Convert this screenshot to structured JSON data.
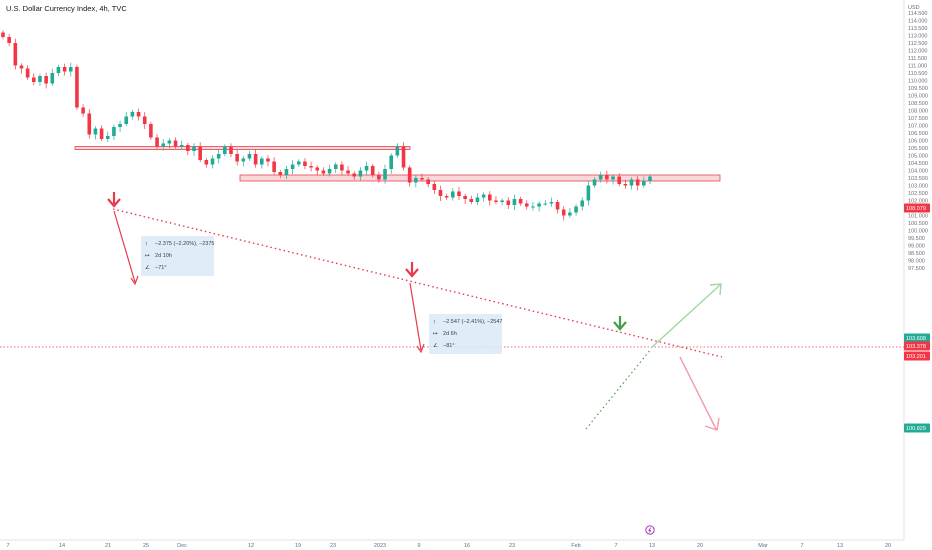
{
  "header": {
    "title": "U.S. Dollar Currency Index, 4h, TVC"
  },
  "chart_data": {
    "type": "candlestick",
    "y_axis_label": "USD",
    "ylim": [
      97.5,
      114.5
    ],
    "y_ticks": [
      "114.000",
      "113.500",
      "113.000",
      "112.500",
      "112.000",
      "111.500",
      "111.000",
      "110.500",
      "110.000",
      "109.500",
      "109.000",
      "108.500",
      "108.000",
      "107.500",
      "107.000",
      "106.500",
      "106.000",
      "105.500",
      "105.000",
      "104.500",
      "104.000",
      "103.500",
      "103.000",
      "102.500",
      "102.000",
      "101.500",
      "101.000",
      "100.500",
      "100.000",
      "99.500",
      "99.000",
      "98.500",
      "98.000",
      "97.500"
    ],
    "y_ticks_top_partial": "114.500",
    "x_ticks": [
      "7",
      "14",
      "21",
      "25",
      "Dec",
      "12",
      "19",
      "23",
      "2023",
      "9",
      "16",
      "23",
      "Feb",
      "7",
      "13",
      "20",
      "Mar",
      "7",
      "13",
      "20"
    ],
    "price_tags": [
      {
        "label": "108.079",
        "value": 108.079,
        "color": "#f23645"
      },
      {
        "label": "103.608",
        "value": 103.608,
        "color": "#22ab94"
      },
      {
        "label": "103.378",
        "value": 103.378,
        "color": "#f23645"
      },
      {
        "label": "103.201",
        "value": 103.201,
        "color": "#f23645"
      },
      {
        "label": "100.829",
        "value": 100.829,
        "color": "#22ab94"
      }
    ],
    "zones": [
      {
        "name": "upper-resistance-zone",
        "from": 105.4,
        "to": 105.6
      },
      {
        "name": "lower-resistance-zone",
        "from": 103.3,
        "to": 103.7
      }
    ],
    "annotations": [
      {
        "name": "measure-1",
        "lines": [
          "−2.375 (−2.20%), −2375",
          "2d 10h",
          "−71°"
        ]
      },
      {
        "name": "measure-2",
        "lines": [
          "−2.547 (−2.41%), −2547",
          "2d 6h",
          "−81°"
        ]
      }
    ],
    "colors": {
      "up": "#22ab94",
      "down": "#f23645",
      "zone": "#f7c2c7",
      "zone_border": "#e7434f",
      "bull_arrow": "#9fd6a2",
      "bear_arrow": "#f49aa6",
      "label_box": "#dce9f8"
    },
    "candles_close_path": [
      112.9,
      112.5,
      111.0,
      110.8,
      110.2,
      109.9,
      110.3,
      109.8,
      110.5,
      110.9,
      110.6,
      110.9,
      108.2,
      107.8,
      106.4,
      106.8,
      106.1,
      106.3,
      106.9,
      107.1,
      107.6,
      107.9,
      107.6,
      107.1,
      106.2,
      105.6,
      105.8,
      106.0,
      105.6,
      105.7,
      105.3,
      105.6,
      104.7,
      104.4,
      104.8,
      105.1,
      105.6,
      105.1,
      104.6,
      104.8,
      105.1,
      104.4,
      104.8,
      104.6,
      103.9,
      103.7,
      104.1,
      104.4,
      104.6,
      104.3,
      104.2,
      104.0,
      103.8,
      104.1,
      104.4,
      104.0,
      103.8,
      103.6,
      104.0,
      104.3,
      103.7,
      103.4,
      104.1,
      105.0,
      105.6,
      104.2,
      103.2,
      103.5,
      103.4,
      103.1,
      102.7,
      102.3,
      102.2,
      102.6,
      102.3,
      102.1,
      101.9,
      102.2,
      102.4,
      102.0,
      101.9,
      102.0,
      101.7,
      102.1,
      101.8,
      101.6,
      101.6,
      101.8,
      101.8,
      101.9,
      101.4,
      101.0,
      101.2,
      101.6,
      102.0,
      103.0,
      103.4,
      103.7,
      103.4,
      103.6,
      103.1,
      103.0,
      103.4,
      103.0,
      103.3,
      103.6
    ]
  }
}
